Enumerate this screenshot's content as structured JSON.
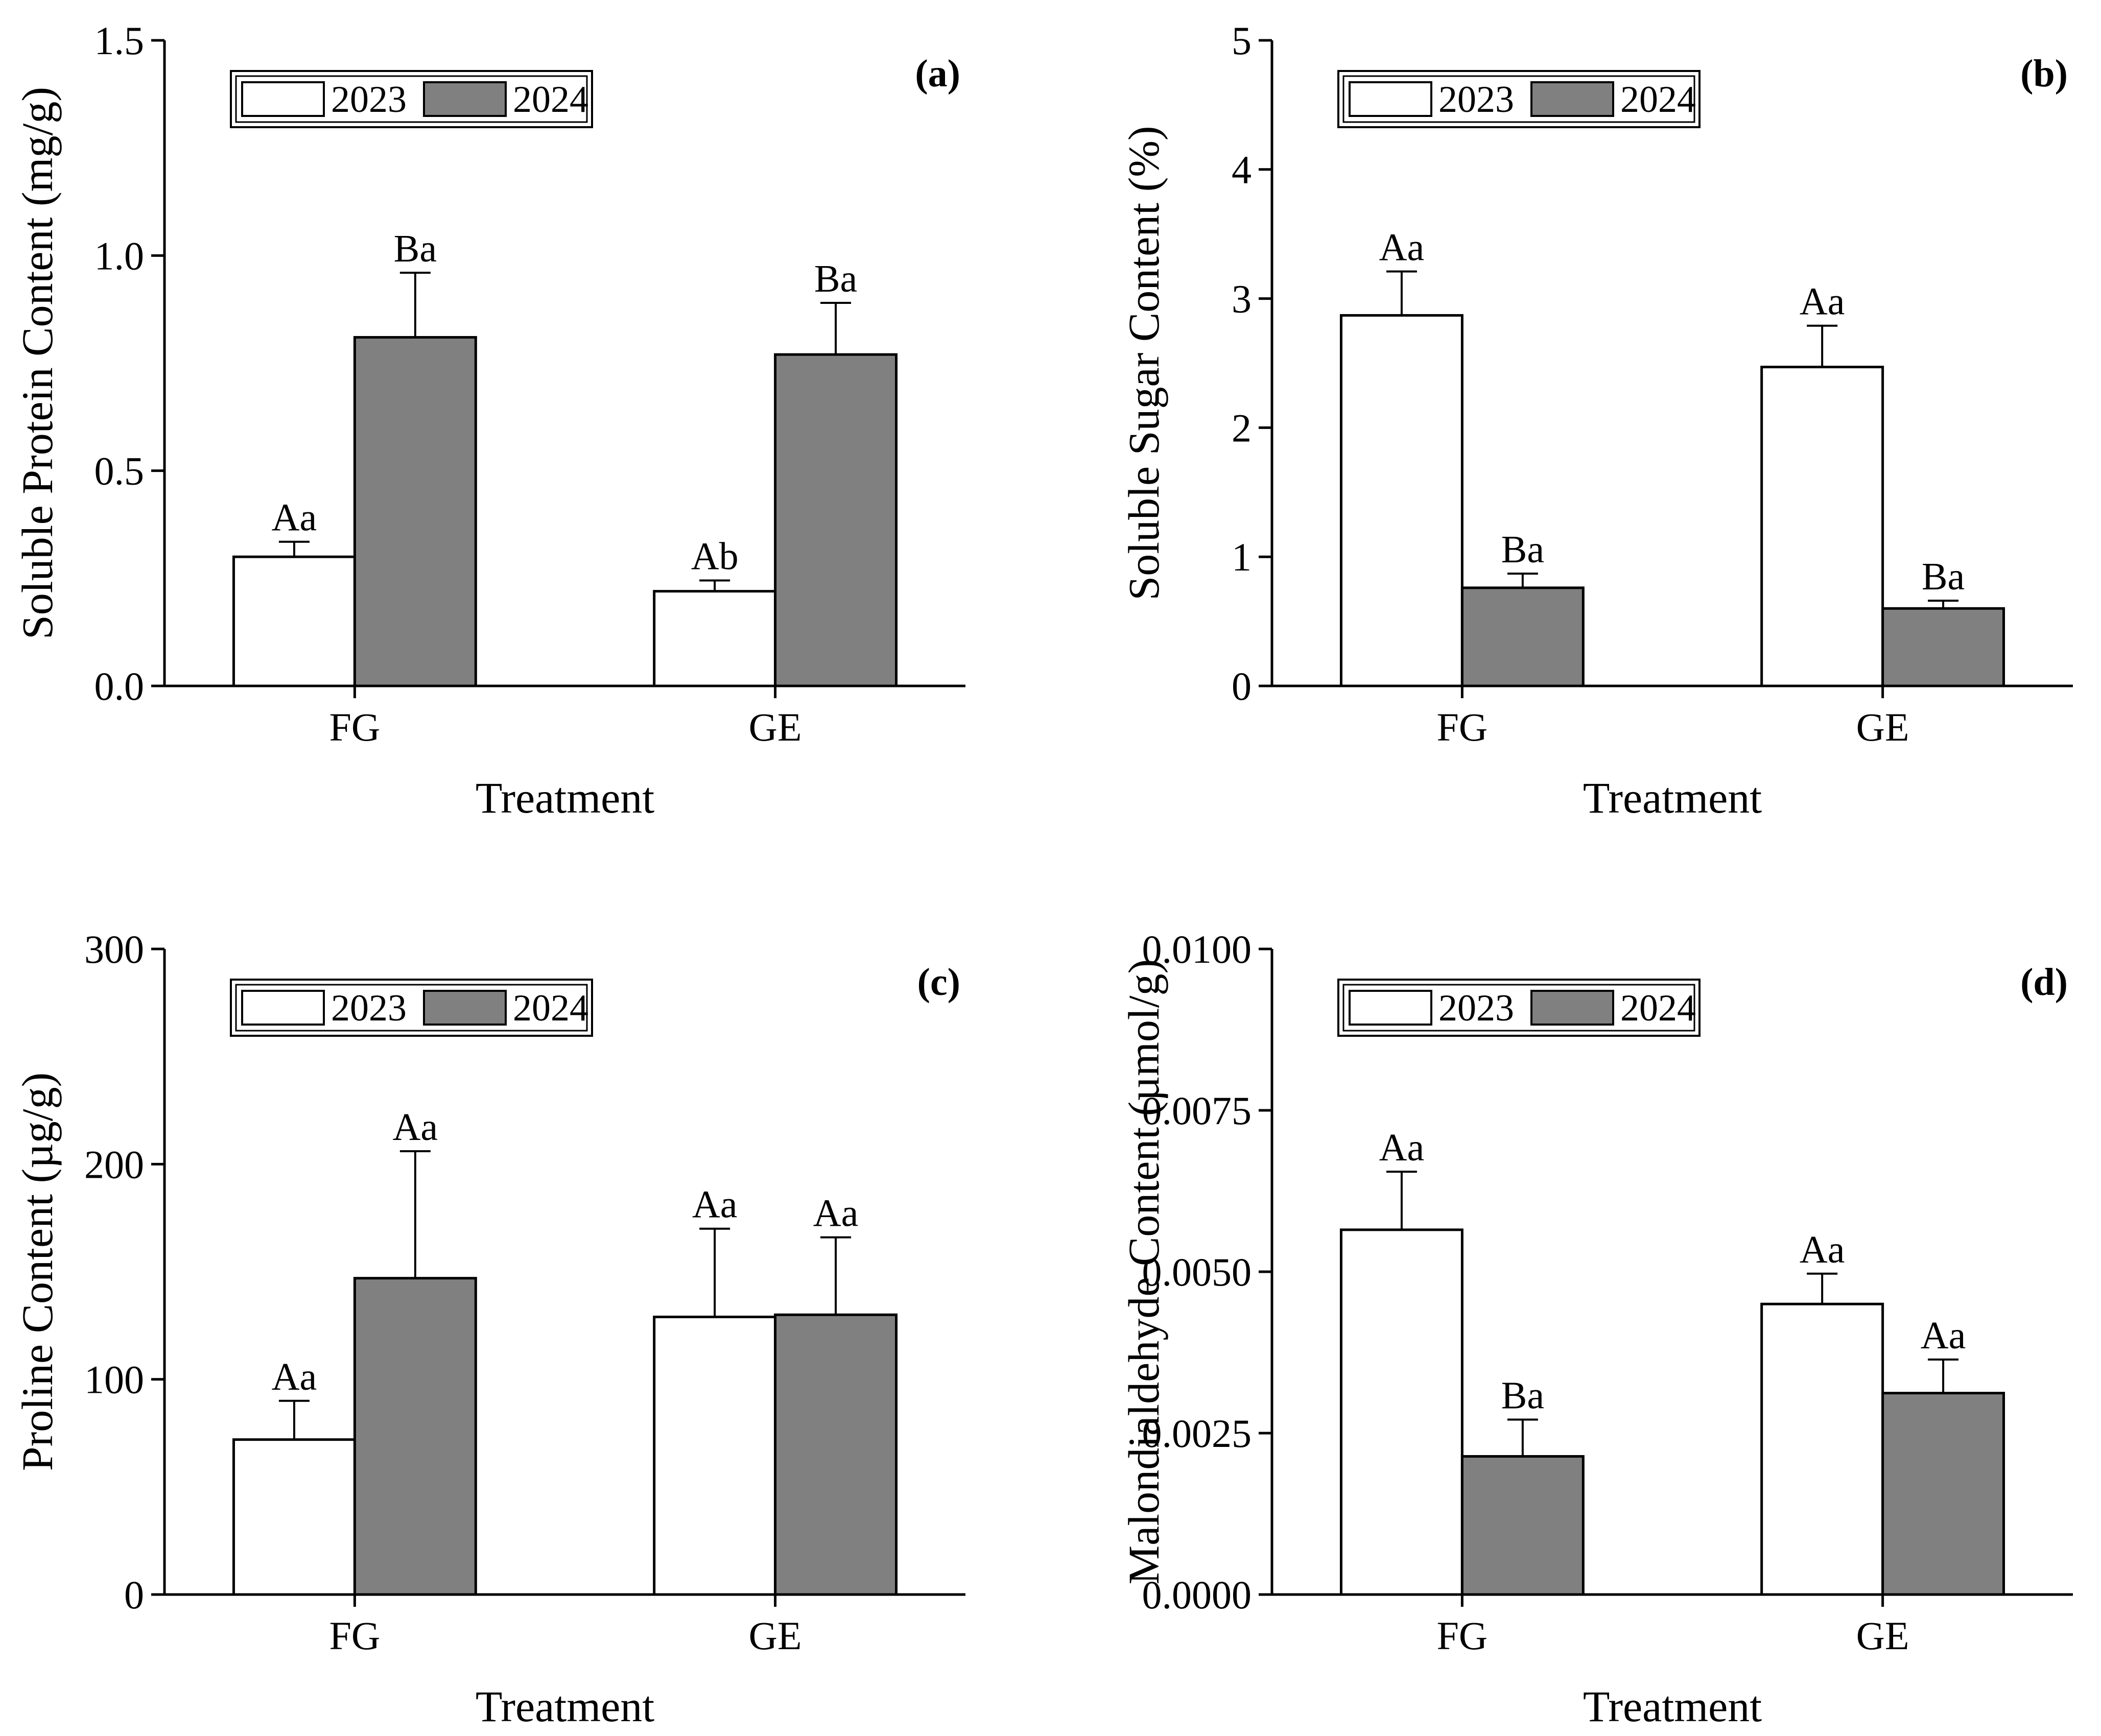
{
  "figure": {
    "colors": {
      "series_2023": "#ffffff",
      "series_2024": "#808080",
      "stroke": "#000000"
    }
  },
  "chart_data": [
    {
      "id": "a",
      "type": "bar",
      "panel_label": "(a)",
      "title": "",
      "xlabel": "Treatment",
      "ylabel": "Soluble Protein Content (mg/g)",
      "categories": [
        "FG",
        "GE"
      ],
      "ylim": [
        0,
        1.5
      ],
      "yticks": [
        "0.0",
        "0.5",
        "1.0",
        "1.5"
      ],
      "legend": {
        "position": "top-left",
        "entries": [
          "2023",
          "2024"
        ]
      },
      "series": [
        {
          "name": "2023",
          "values": [
            0.3,
            0.22
          ],
          "errors": [
            0.035,
            0.025
          ],
          "labels": [
            "Aa",
            "Ab"
          ]
        },
        {
          "name": "2024",
          "values": [
            0.81,
            0.77
          ],
          "errors": [
            0.15,
            0.12
          ],
          "labels": [
            "Ba",
            "Ba"
          ]
        }
      ]
    },
    {
      "id": "b",
      "type": "bar",
      "panel_label": "(b)",
      "title": "",
      "xlabel": "Treatment",
      "ylabel": "Soluble Sugar Content (%)",
      "categories": [
        "FG",
        "GE"
      ],
      "ylim": [
        0,
        5
      ],
      "yticks": [
        "0",
        "1",
        "2",
        "3",
        "4",
        "5"
      ],
      "legend": {
        "position": "top-left",
        "entries": [
          "2023",
          "2024"
        ]
      },
      "series": [
        {
          "name": "2023",
          "values": [
            2.87,
            2.47
          ],
          "errors": [
            0.34,
            0.32
          ],
          "labels": [
            "Aa",
            "Aa"
          ]
        },
        {
          "name": "2024",
          "values": [
            0.76,
            0.6
          ],
          "errors": [
            0.11,
            0.06
          ],
          "labels": [
            "Ba",
            "Ba"
          ]
        }
      ]
    },
    {
      "id": "c",
      "type": "bar",
      "panel_label": "(c)",
      "title": "",
      "xlabel": "Treatment",
      "ylabel": "Proline Content (µg/g)",
      "categories": [
        "FG",
        "GE"
      ],
      "ylim": [
        0,
        300
      ],
      "yticks": [
        "0",
        "100",
        "200",
        "300"
      ],
      "legend": {
        "position": "top-left",
        "entries": [
          "2023",
          "2024"
        ]
      },
      "series": [
        {
          "name": "2023",
          "values": [
            72,
            129
          ],
          "errors": [
            18,
            41
          ],
          "labels": [
            "Aa",
            "Aa"
          ]
        },
        {
          "name": "2024",
          "values": [
            147,
            130
          ],
          "errors": [
            59,
            36
          ],
          "labels": [
            "Aa",
            "Aa"
          ]
        }
      ]
    },
    {
      "id": "d",
      "type": "bar",
      "panel_label": "(d)",
      "title": "",
      "xlabel": "Treatment",
      "ylabel": "Malondialdehyde Content (µmol/g)",
      "categories": [
        "FG",
        "GE"
      ],
      "ylim": [
        0,
        0.01
      ],
      "yticks": [
        "0.0000",
        "0.0025",
        "0.0050",
        "0.0075",
        "0.0100"
      ],
      "legend": {
        "position": "top-left",
        "entries": [
          "2023",
          "2024"
        ]
      },
      "series": [
        {
          "name": "2023",
          "values": [
            0.00565,
            0.0045
          ],
          "errors": [
            0.0009,
            0.00047
          ],
          "labels": [
            "Aa",
            "Aa"
          ]
        },
        {
          "name": "2024",
          "values": [
            0.00214,
            0.00312
          ],
          "errors": [
            0.00057,
            0.00052
          ],
          "labels": [
            "Ba",
            "Aa"
          ]
        }
      ]
    }
  ]
}
